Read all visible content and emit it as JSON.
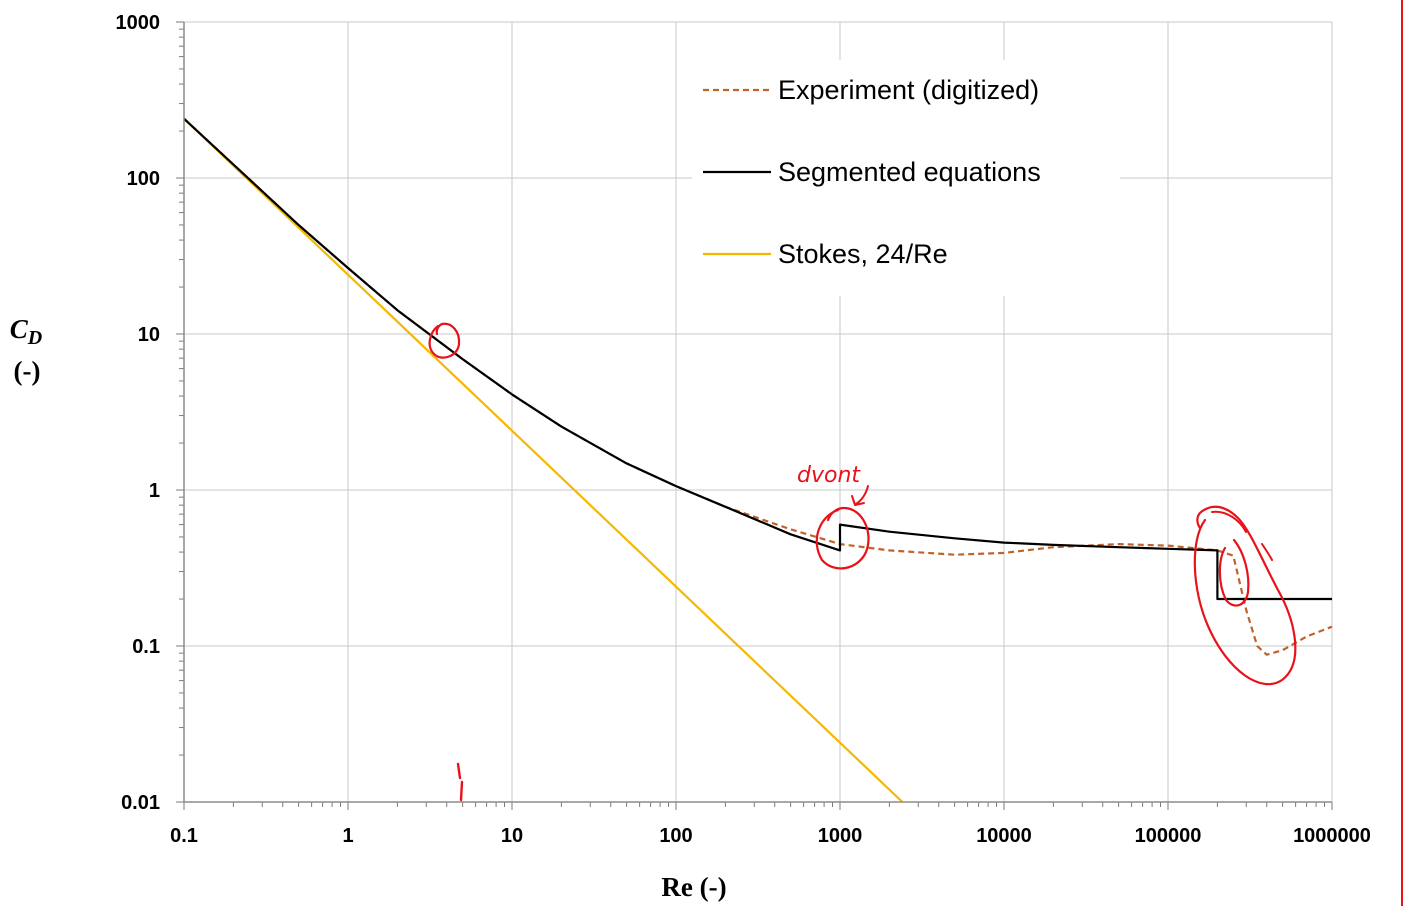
{
  "chart_data": {
    "type": "line",
    "xlabel": "Re (-)",
    "ylabel": {
      "symbol": "C",
      "subscript": "D",
      "unit": "(-)"
    },
    "x_scale": "log",
    "y_scale": "log",
    "xlim": [
      0.1,
      1000000
    ],
    "ylim": [
      0.01,
      1000
    ],
    "x_ticks": [
      "0.1",
      "1",
      "10",
      "100",
      "1000",
      "10000",
      "100000",
      "1000000"
    ],
    "y_ticks": [
      "0.01",
      "0.1",
      "1",
      "10",
      "100",
      "1000"
    ],
    "grid": true,
    "legend_position": "top-right",
    "series": [
      {
        "name": "Experiment (digitized)",
        "style": "dashed",
        "color": "#c0632a",
        "x": [
          0.1,
          0.2,
          0.5,
          1,
          2,
          5,
          10,
          20,
          50,
          100,
          200,
          500,
          1000,
          2000,
          5000,
          10000,
          20000,
          50000,
          100000,
          200000,
          250000,
          300000,
          350000,
          400000,
          500000,
          700000,
          1000000
        ],
        "y": [
          240,
          122,
          50,
          26.5,
          14.2,
          6.9,
          4.1,
          2.55,
          1.48,
          1.06,
          0.78,
          0.56,
          0.45,
          0.41,
          0.385,
          0.395,
          0.43,
          0.45,
          0.44,
          0.41,
          0.38,
          0.17,
          0.1,
          0.088,
          0.094,
          0.115,
          0.133
        ]
      },
      {
        "name": "Segmented equations",
        "style": "solid",
        "color": "#000000",
        "x": [
          0.1,
          0.2,
          0.5,
          1,
          2,
          5,
          10,
          20,
          50,
          100,
          200,
          500,
          1000,
          1000,
          2000,
          5000,
          10000,
          20000,
          50000,
          100000,
          200000,
          200000,
          1000000
        ],
        "y": [
          240,
          122,
          50,
          26.5,
          14.2,
          6.9,
          4.1,
          2.55,
          1.48,
          1.06,
          0.78,
          0.52,
          0.41,
          0.6,
          0.54,
          0.49,
          0.46,
          0.445,
          0.43,
          0.42,
          0.41,
          0.2,
          0.2
        ]
      },
      {
        "name": "Stokes, 24/Re",
        "style": "solid",
        "color": "#f5b800",
        "x": [
          0.1,
          2400
        ],
        "y": [
          240,
          0.01
        ]
      }
    ],
    "annotations": [
      {
        "type": "text",
        "text": "dvont"
      }
    ]
  }
}
